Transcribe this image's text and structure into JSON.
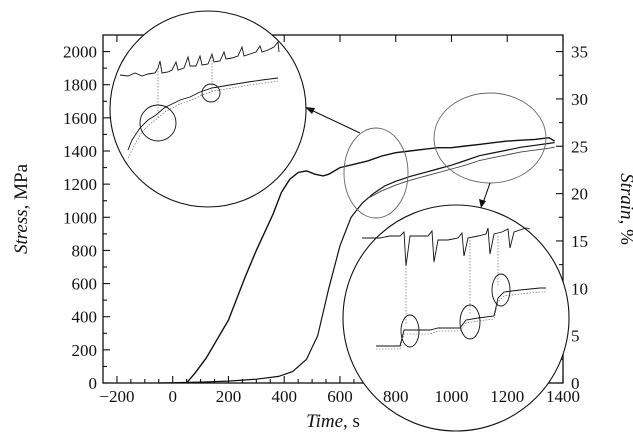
{
  "chart_data": {
    "type": "line",
    "title": "",
    "xlabel": "Time, s",
    "ylabel_left": "Stress, MPa",
    "ylabel_right": "Strain, %",
    "xlim": [
      -250,
      1400
    ],
    "ylim_left": [
      0,
      2100
    ],
    "ylim_right": [
      0,
      36.75
    ],
    "x_ticks": [
      -200,
      0,
      200,
      400,
      600,
      800,
      1000,
      1200,
      1400
    ],
    "y_left_ticks": [
      0,
      200,
      400,
      600,
      800,
      1000,
      1200,
      1400,
      1600,
      1800,
      2000
    ],
    "y_right_ticks": [
      0,
      5,
      10,
      15,
      20,
      25,
      30,
      35
    ],
    "x_tick_labels": [
      "−200",
      "0",
      "200",
      "400",
      "600",
      "800",
      "1000",
      "1200",
      "1400"
    ],
    "y_left_tick_labels": [
      "0",
      "200",
      "400",
      "600",
      "800",
      "1000",
      "1200",
      "1400",
      "1600",
      "1800",
      "2000"
    ],
    "y_right_tick_labels": [
      "0",
      "5",
      "10",
      "15",
      "20",
      "25",
      "30",
      "35"
    ],
    "grid": false,
    "series": [
      {
        "axis": "left",
        "x": [
          50,
          80,
          120,
          200,
          260,
          300,
          360,
          390,
          420,
          450,
          480,
          510,
          540,
          560,
          600,
          650,
          700,
          750,
          800,
          850,
          900,
          950,
          1000,
          1050,
          1100,
          1150,
          1200,
          1250,
          1300,
          1350,
          1370
        ],
        "values": [
          0,
          60,
          150,
          380,
          640,
          800,
          1020,
          1150,
          1230,
          1270,
          1280,
          1260,
          1250,
          1260,
          1300,
          1320,
          1340,
          1370,
          1390,
          1400,
          1410,
          1420,
          1420,
          1430,
          1440,
          1450,
          1460,
          1465,
          1470,
          1480,
          1460
        ]
      },
      {
        "axis": "right",
        "x": [
          -50,
          100,
          200,
          300,
          380,
          430,
          480,
          520,
          560,
          600,
          640,
          680,
          720,
          760,
          800,
          850,
          900,
          950,
          1000,
          1050,
          1100,
          1150,
          1200,
          1250,
          1300,
          1350,
          1370
        ],
        "values": [
          0,
          0.1,
          0.2,
          0.4,
          0.7,
          1.2,
          2.5,
          5,
          10,
          14.5,
          17.5,
          19,
          20,
          20.8,
          21.3,
          21.8,
          22.2,
          22.6,
          23,
          23.5,
          24,
          24.3,
          24.6,
          24.9,
          25.1,
          25.3,
          25.4
        ]
      },
      {
        "axis": "right",
        "x": [
          700,
          750,
          800,
          850,
          900,
          950,
          1000,
          1050,
          1100,
          1150,
          1200,
          1250,
          1300,
          1350,
          1370
        ],
        "values": [
          19.5,
          20.3,
          20.9,
          21.4,
          21.8,
          22.2,
          22.6,
          23,
          23.5,
          23.8,
          24.1,
          24.4,
          24.6,
          24.8,
          24.9
        ]
      }
    ]
  }
}
